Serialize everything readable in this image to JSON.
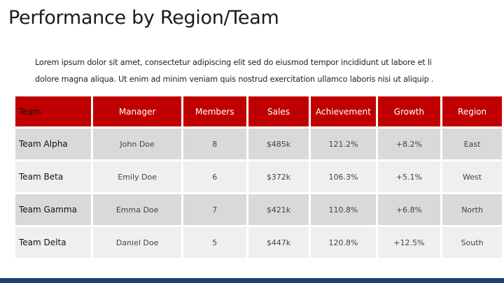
{
  "header": {
    "title": "Performance by Region/Team"
  },
  "body": {
    "lines": [
      "Lorem ipsum dolor sit amet, consectetur adipiscing elit sed do eiusmod tempor incididunt ut labore et li",
      "dolore magna aliqua. Ut enim ad minim veniam quis nostrud exercitation ullamco laboris nisi ut aliquip ."
    ]
  },
  "table": {
    "columns": [
      "Team",
      "Manager",
      "Members",
      "Sales",
      "Achievement",
      "Growth",
      "Region"
    ],
    "rows": [
      [
        "Team Alpha",
        "John Doe",
        "8",
        "$485k",
        "121.2%",
        "+8.2%",
        "East"
      ],
      [
        "Team Beta",
        "Emily Doe",
        "6",
        "$372k",
        "106.3%",
        "+5.1%",
        "West"
      ],
      [
        "Team Gamma",
        "Emma Doe",
        "7",
        "$421k",
        "110.8%",
        "+6.8%",
        "North"
      ],
      [
        "Team Delta",
        "Daniel Doe",
        "5",
        "$447k",
        "120.8%",
        "+12.5%",
        "South"
      ]
    ]
  }
}
